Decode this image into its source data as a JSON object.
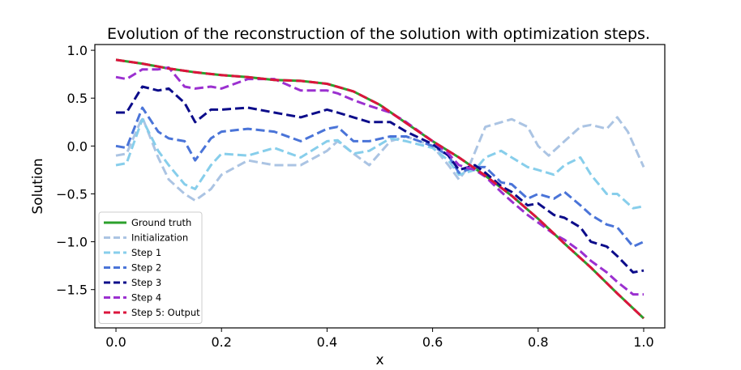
{
  "chart_data": {
    "type": "line",
    "title": "Evolution of the reconstruction of the solution with optimization steps.",
    "xlabel": "x",
    "ylabel": "Solution",
    "xlim": [
      -0.04,
      1.04
    ],
    "ylim": [
      -1.9,
      1.06
    ],
    "xticks": [
      0.0,
      0.2,
      0.4,
      0.6,
      0.8,
      1.0
    ],
    "xtick_labels": [
      "0.0",
      "0.2",
      "0.4",
      "0.6",
      "0.8",
      "1.0"
    ],
    "yticks": [
      1.0,
      0.5,
      0.0,
      -0.5,
      -1.0,
      -1.5
    ],
    "ytick_labels": [
      "1.0",
      "0.5",
      "0.0",
      "−0.5",
      "−1.0",
      "−1.5"
    ],
    "grid": false,
    "legend_position": "lower-left",
    "series": [
      {
        "name": "Ground truth",
        "color": "#2ca02c",
        "dashed": false,
        "width": 3,
        "x": [
          0,
          0.05,
          0.1,
          0.15,
          0.2,
          0.25,
          0.3,
          0.35,
          0.4,
          0.45,
          0.5,
          0.55,
          0.6,
          0.65,
          0.7,
          0.75,
          0.8,
          0.85,
          0.9,
          0.95,
          1.0
        ],
        "y": [
          0.9,
          0.86,
          0.81,
          0.77,
          0.74,
          0.72,
          0.69,
          0.68,
          0.65,
          0.57,
          0.43,
          0.24,
          0.05,
          -0.12,
          -0.31,
          -0.52,
          -0.76,
          -1.02,
          -1.27,
          -1.54,
          -1.8
        ]
      },
      {
        "name": "Initialization",
        "color": "#abc4e3",
        "dashed": true,
        "width": 3,
        "x": [
          0,
          0.02,
          0.05,
          0.08,
          0.1,
          0.13,
          0.15,
          0.18,
          0.2,
          0.25,
          0.3,
          0.35,
          0.4,
          0.42,
          0.45,
          0.48,
          0.52,
          0.55,
          0.6,
          0.63,
          0.65,
          0.67,
          0.7,
          0.75,
          0.78,
          0.8,
          0.82,
          0.85,
          0.88,
          0.9,
          0.93,
          0.95,
          0.97,
          1.0
        ],
        "y": [
          -0.1,
          -0.08,
          0.3,
          -0.12,
          -0.35,
          -0.5,
          -0.57,
          -0.45,
          -0.3,
          -0.15,
          -0.2,
          -0.2,
          -0.05,
          0.05,
          -0.08,
          -0.2,
          0.05,
          0.1,
          0.0,
          -0.2,
          -0.35,
          -0.2,
          0.2,
          0.28,
          0.2,
          0.0,
          -0.1,
          0.05,
          0.2,
          0.22,
          0.18,
          0.3,
          0.15,
          -0.22
        ]
      },
      {
        "name": "Step 1",
        "color": "#87ceeb",
        "dashed": true,
        "width": 3,
        "x": [
          0,
          0.02,
          0.05,
          0.08,
          0.1,
          0.13,
          0.15,
          0.18,
          0.2,
          0.25,
          0.3,
          0.35,
          0.4,
          0.42,
          0.45,
          0.48,
          0.52,
          0.55,
          0.6,
          0.63,
          0.65,
          0.68,
          0.7,
          0.73,
          0.75,
          0.78,
          0.8,
          0.83,
          0.85,
          0.88,
          0.9,
          0.93,
          0.95,
          0.98,
          1.0
        ],
        "y": [
          -0.2,
          -0.18,
          0.28,
          -0.05,
          -0.2,
          -0.4,
          -0.45,
          -0.2,
          -0.08,
          -0.1,
          -0.02,
          -0.12,
          0.05,
          0.06,
          -0.08,
          -0.05,
          0.08,
          0.05,
          -0.02,
          -0.15,
          -0.3,
          -0.25,
          -0.12,
          -0.05,
          -0.12,
          -0.22,
          -0.25,
          -0.3,
          -0.2,
          -0.12,
          -0.3,
          -0.5,
          -0.5,
          -0.65,
          -0.63
        ]
      },
      {
        "name": "Step 2",
        "color": "#4a74d8",
        "dashed": true,
        "width": 3,
        "x": [
          0,
          0.02,
          0.05,
          0.08,
          0.1,
          0.13,
          0.15,
          0.18,
          0.2,
          0.25,
          0.3,
          0.35,
          0.4,
          0.42,
          0.45,
          0.48,
          0.52,
          0.55,
          0.6,
          0.63,
          0.65,
          0.68,
          0.7,
          0.73,
          0.75,
          0.78,
          0.8,
          0.83,
          0.85,
          0.88,
          0.9,
          0.93,
          0.95,
          0.98,
          1.0
        ],
        "y": [
          0.0,
          -0.02,
          0.4,
          0.15,
          0.08,
          0.05,
          -0.15,
          0.08,
          0.15,
          0.18,
          0.15,
          0.05,
          0.18,
          0.2,
          0.05,
          0.05,
          0.1,
          0.1,
          0.0,
          -0.1,
          -0.28,
          -0.22,
          -0.22,
          -0.38,
          -0.4,
          -0.55,
          -0.5,
          -0.55,
          -0.48,
          -0.62,
          -0.72,
          -0.82,
          -0.85,
          -1.05,
          -1.0
        ]
      },
      {
        "name": "Step 3",
        "color": "#0c0c8a",
        "dashed": true,
        "width": 3,
        "x": [
          0,
          0.02,
          0.05,
          0.08,
          0.1,
          0.13,
          0.15,
          0.18,
          0.2,
          0.25,
          0.3,
          0.35,
          0.4,
          0.42,
          0.45,
          0.48,
          0.52,
          0.55,
          0.6,
          0.63,
          0.65,
          0.68,
          0.7,
          0.73,
          0.75,
          0.78,
          0.8,
          0.83,
          0.85,
          0.88,
          0.9,
          0.93,
          0.95,
          0.98,
          1.0
        ],
        "y": [
          0.35,
          0.35,
          0.62,
          0.58,
          0.6,
          0.45,
          0.25,
          0.38,
          0.38,
          0.4,
          0.35,
          0.3,
          0.38,
          0.35,
          0.3,
          0.25,
          0.25,
          0.15,
          0.02,
          -0.1,
          -0.25,
          -0.2,
          -0.28,
          -0.42,
          -0.48,
          -0.62,
          -0.6,
          -0.72,
          -0.75,
          -0.85,
          -1.0,
          -1.05,
          -1.15,
          -1.32,
          -1.3
        ]
      },
      {
        "name": "Step 4",
        "color": "#9b30d0",
        "dashed": true,
        "width": 3,
        "x": [
          0,
          0.02,
          0.05,
          0.08,
          0.1,
          0.13,
          0.15,
          0.18,
          0.2,
          0.25,
          0.3,
          0.35,
          0.4,
          0.42,
          0.45,
          0.48,
          0.52,
          0.55,
          0.6,
          0.63,
          0.65,
          0.68,
          0.7,
          0.73,
          0.75,
          0.78,
          0.8,
          0.83,
          0.85,
          0.88,
          0.9,
          0.93,
          0.95,
          0.98,
          1.0
        ],
        "y": [
          0.72,
          0.7,
          0.8,
          0.8,
          0.82,
          0.62,
          0.6,
          0.62,
          0.6,
          0.7,
          0.7,
          0.58,
          0.58,
          0.55,
          0.48,
          0.42,
          0.35,
          0.25,
          0.05,
          -0.08,
          -0.2,
          -0.25,
          -0.32,
          -0.48,
          -0.58,
          -0.72,
          -0.8,
          -0.92,
          -0.98,
          -1.1,
          -1.2,
          -1.32,
          -1.42,
          -1.55,
          -1.55
        ]
      },
      {
        "name": "Step 5: Output",
        "color": "#dc143c",
        "dashed": true,
        "width": 3,
        "x": [
          0,
          0.05,
          0.1,
          0.15,
          0.2,
          0.25,
          0.3,
          0.35,
          0.4,
          0.45,
          0.5,
          0.55,
          0.6,
          0.65,
          0.7,
          0.75,
          0.8,
          0.85,
          0.9,
          0.95,
          1.0
        ],
        "y": [
          0.9,
          0.86,
          0.81,
          0.77,
          0.74,
          0.72,
          0.69,
          0.68,
          0.65,
          0.57,
          0.43,
          0.24,
          0.05,
          -0.12,
          -0.31,
          -0.52,
          -0.76,
          -1.02,
          -1.27,
          -1.54,
          -1.8
        ]
      }
    ]
  }
}
